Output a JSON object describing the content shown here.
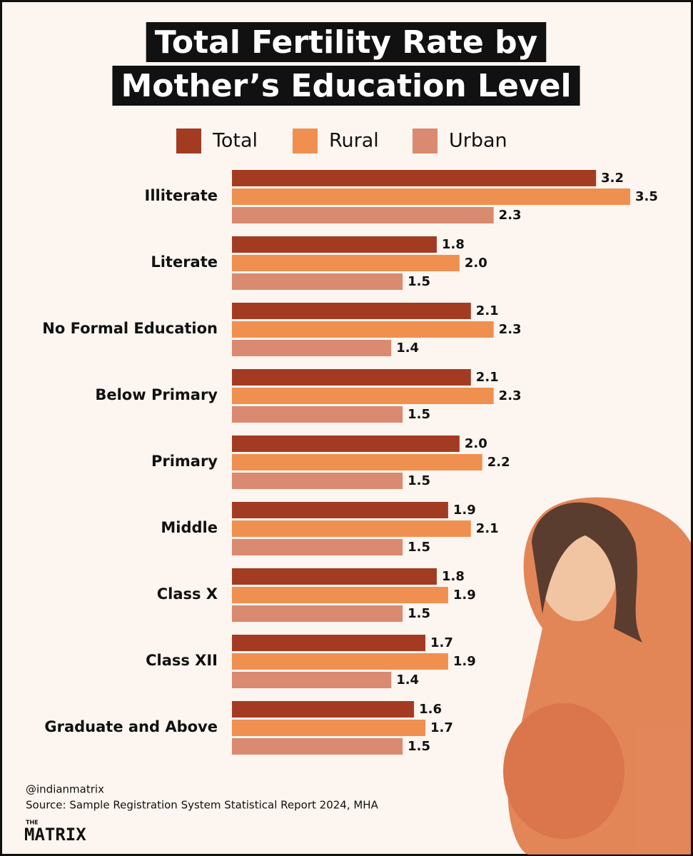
{
  "chart_data": {
    "type": "bar",
    "orientation": "horizontal",
    "title": [
      "Total Fertility Rate by",
      "Mother’s Education Level"
    ],
    "categories": [
      "Illiterate",
      "Literate",
      "No Formal Education",
      "Below Primary",
      "Primary",
      "Middle",
      "Class X",
      "Class XII",
      "Graduate and Above"
    ],
    "series": [
      {
        "name": "Total",
        "color": "#a33b22",
        "values": [
          3.2,
          1.8,
          2.1,
          2.1,
          2.0,
          1.9,
          1.8,
          1.7,
          1.6
        ],
        "value_labels": [
          "3.2",
          "1.8",
          "2.1",
          "2.1",
          "2.0",
          "1.9",
          "1.8",
          "1.7",
          "1.6"
        ]
      },
      {
        "name": "Rural",
        "color": "#ef9050",
        "values": [
          3.5,
          2.0,
          2.3,
          2.3,
          2.2,
          2.1,
          1.9,
          1.9,
          1.7
        ],
        "value_labels": [
          "3.5",
          "2.0",
          "2.3",
          "2.3",
          "2.2",
          "2.1",
          "1.9",
          "1.9",
          "1.7"
        ]
      },
      {
        "name": "Urban",
        "color": "#d98a70",
        "values": [
          2.3,
          1.5,
          1.4,
          1.5,
          1.5,
          1.5,
          1.5,
          1.4,
          1.5
        ],
        "value_labels": [
          "2.3",
          "1.5",
          "1.4",
          "1.5",
          "1.5",
          "1.5",
          "1.5",
          "1.4",
          "1.5"
        ]
      }
    ],
    "legend": "top"
  },
  "footer": {
    "handle": "@indianmatrix",
    "source": "Source: Sample Registration System Statistical Report 2024, MHA"
  },
  "logo": {
    "small": "THE",
    "main": "MATRIX"
  }
}
